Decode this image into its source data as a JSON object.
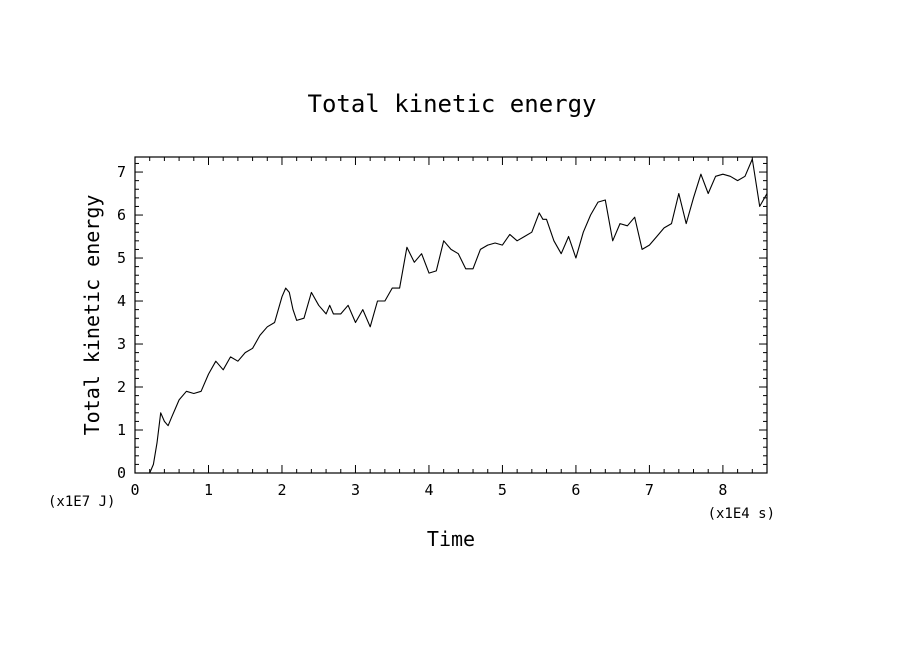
{
  "chart_data": {
    "type": "line",
    "title": "Total kinetic energy",
    "xlabel": "Time",
    "ylabel": "Total kinetic energy",
    "x_unit": "(x1E4 s)",
    "y_unit": "(x1E7 J)",
    "xlim": [
      0,
      8.6
    ],
    "ylim": [
      0,
      7.35
    ],
    "x_ticks": [
      0,
      1,
      2,
      3,
      4,
      5,
      6,
      7,
      8
    ],
    "y_ticks": [
      0,
      1,
      2,
      3,
      4,
      5,
      6,
      7
    ],
    "x_tick_labels": [
      "0",
      "1",
      "2",
      "3",
      "4",
      "5",
      "6",
      "7",
      "8"
    ],
    "y_tick_labels": [
      "0",
      "1",
      "2",
      "3",
      "4",
      "5",
      "6",
      "7"
    ],
    "grid": false,
    "series": [
      {
        "color": "#000000",
        "x": [
          0.2,
          0.25,
          0.3,
          0.35,
          0.4,
          0.45,
          0.5,
          0.55,
          0.6,
          0.7,
          0.8,
          0.9,
          1.0,
          1.1,
          1.2,
          1.3,
          1.4,
          1.5,
          1.6,
          1.7,
          1.8,
          1.9,
          2.0,
          2.05,
          2.1,
          2.15,
          2.2,
          2.3,
          2.4,
          2.5,
          2.6,
          2.65,
          2.7,
          2.8,
          2.9,
          3.0,
          3.1,
          3.2,
          3.3,
          3.4,
          3.5,
          3.6,
          3.7,
          3.8,
          3.9,
          4.0,
          4.1,
          4.2,
          4.3,
          4.4,
          4.5,
          4.6,
          4.7,
          4.8,
          4.9,
          5.0,
          5.1,
          5.2,
          5.3,
          5.4,
          5.5,
          5.55,
          5.6,
          5.7,
          5.8,
          5.9,
          6.0,
          6.1,
          6.2,
          6.3,
          6.4,
          6.5,
          6.6,
          6.7,
          6.8,
          6.9,
          7.0,
          7.1,
          7.2,
          7.3,
          7.4,
          7.5,
          7.6,
          7.7,
          7.8,
          7.9,
          8.0,
          8.1,
          8.2,
          8.3,
          8.4,
          8.5,
          8.6
        ],
        "y": [
          0.0,
          0.2,
          0.7,
          1.4,
          1.2,
          1.1,
          1.3,
          1.5,
          1.7,
          1.9,
          1.85,
          1.9,
          2.3,
          2.6,
          2.4,
          2.7,
          2.6,
          2.8,
          2.9,
          3.2,
          3.4,
          3.5,
          4.1,
          4.3,
          4.2,
          3.8,
          3.55,
          3.6,
          4.2,
          3.9,
          3.7,
          3.9,
          3.7,
          3.7,
          3.9,
          3.5,
          3.8,
          3.4,
          4.0,
          4.0,
          4.3,
          4.3,
          5.25,
          4.9,
          5.1,
          4.65,
          4.7,
          5.4,
          5.2,
          5.1,
          4.75,
          4.75,
          5.2,
          5.3,
          5.35,
          5.3,
          5.55,
          5.4,
          5.5,
          5.6,
          6.05,
          5.9,
          5.9,
          5.4,
          5.1,
          5.5,
          5.0,
          5.6,
          6.0,
          6.3,
          6.35,
          5.4,
          5.8,
          5.75,
          5.95,
          5.2,
          5.3,
          5.5,
          5.7,
          5.8,
          6.5,
          5.8,
          6.4,
          6.95,
          6.5,
          6.9,
          6.95,
          6.9,
          6.8,
          6.9,
          7.3,
          6.2,
          6.5
        ]
      }
    ]
  }
}
